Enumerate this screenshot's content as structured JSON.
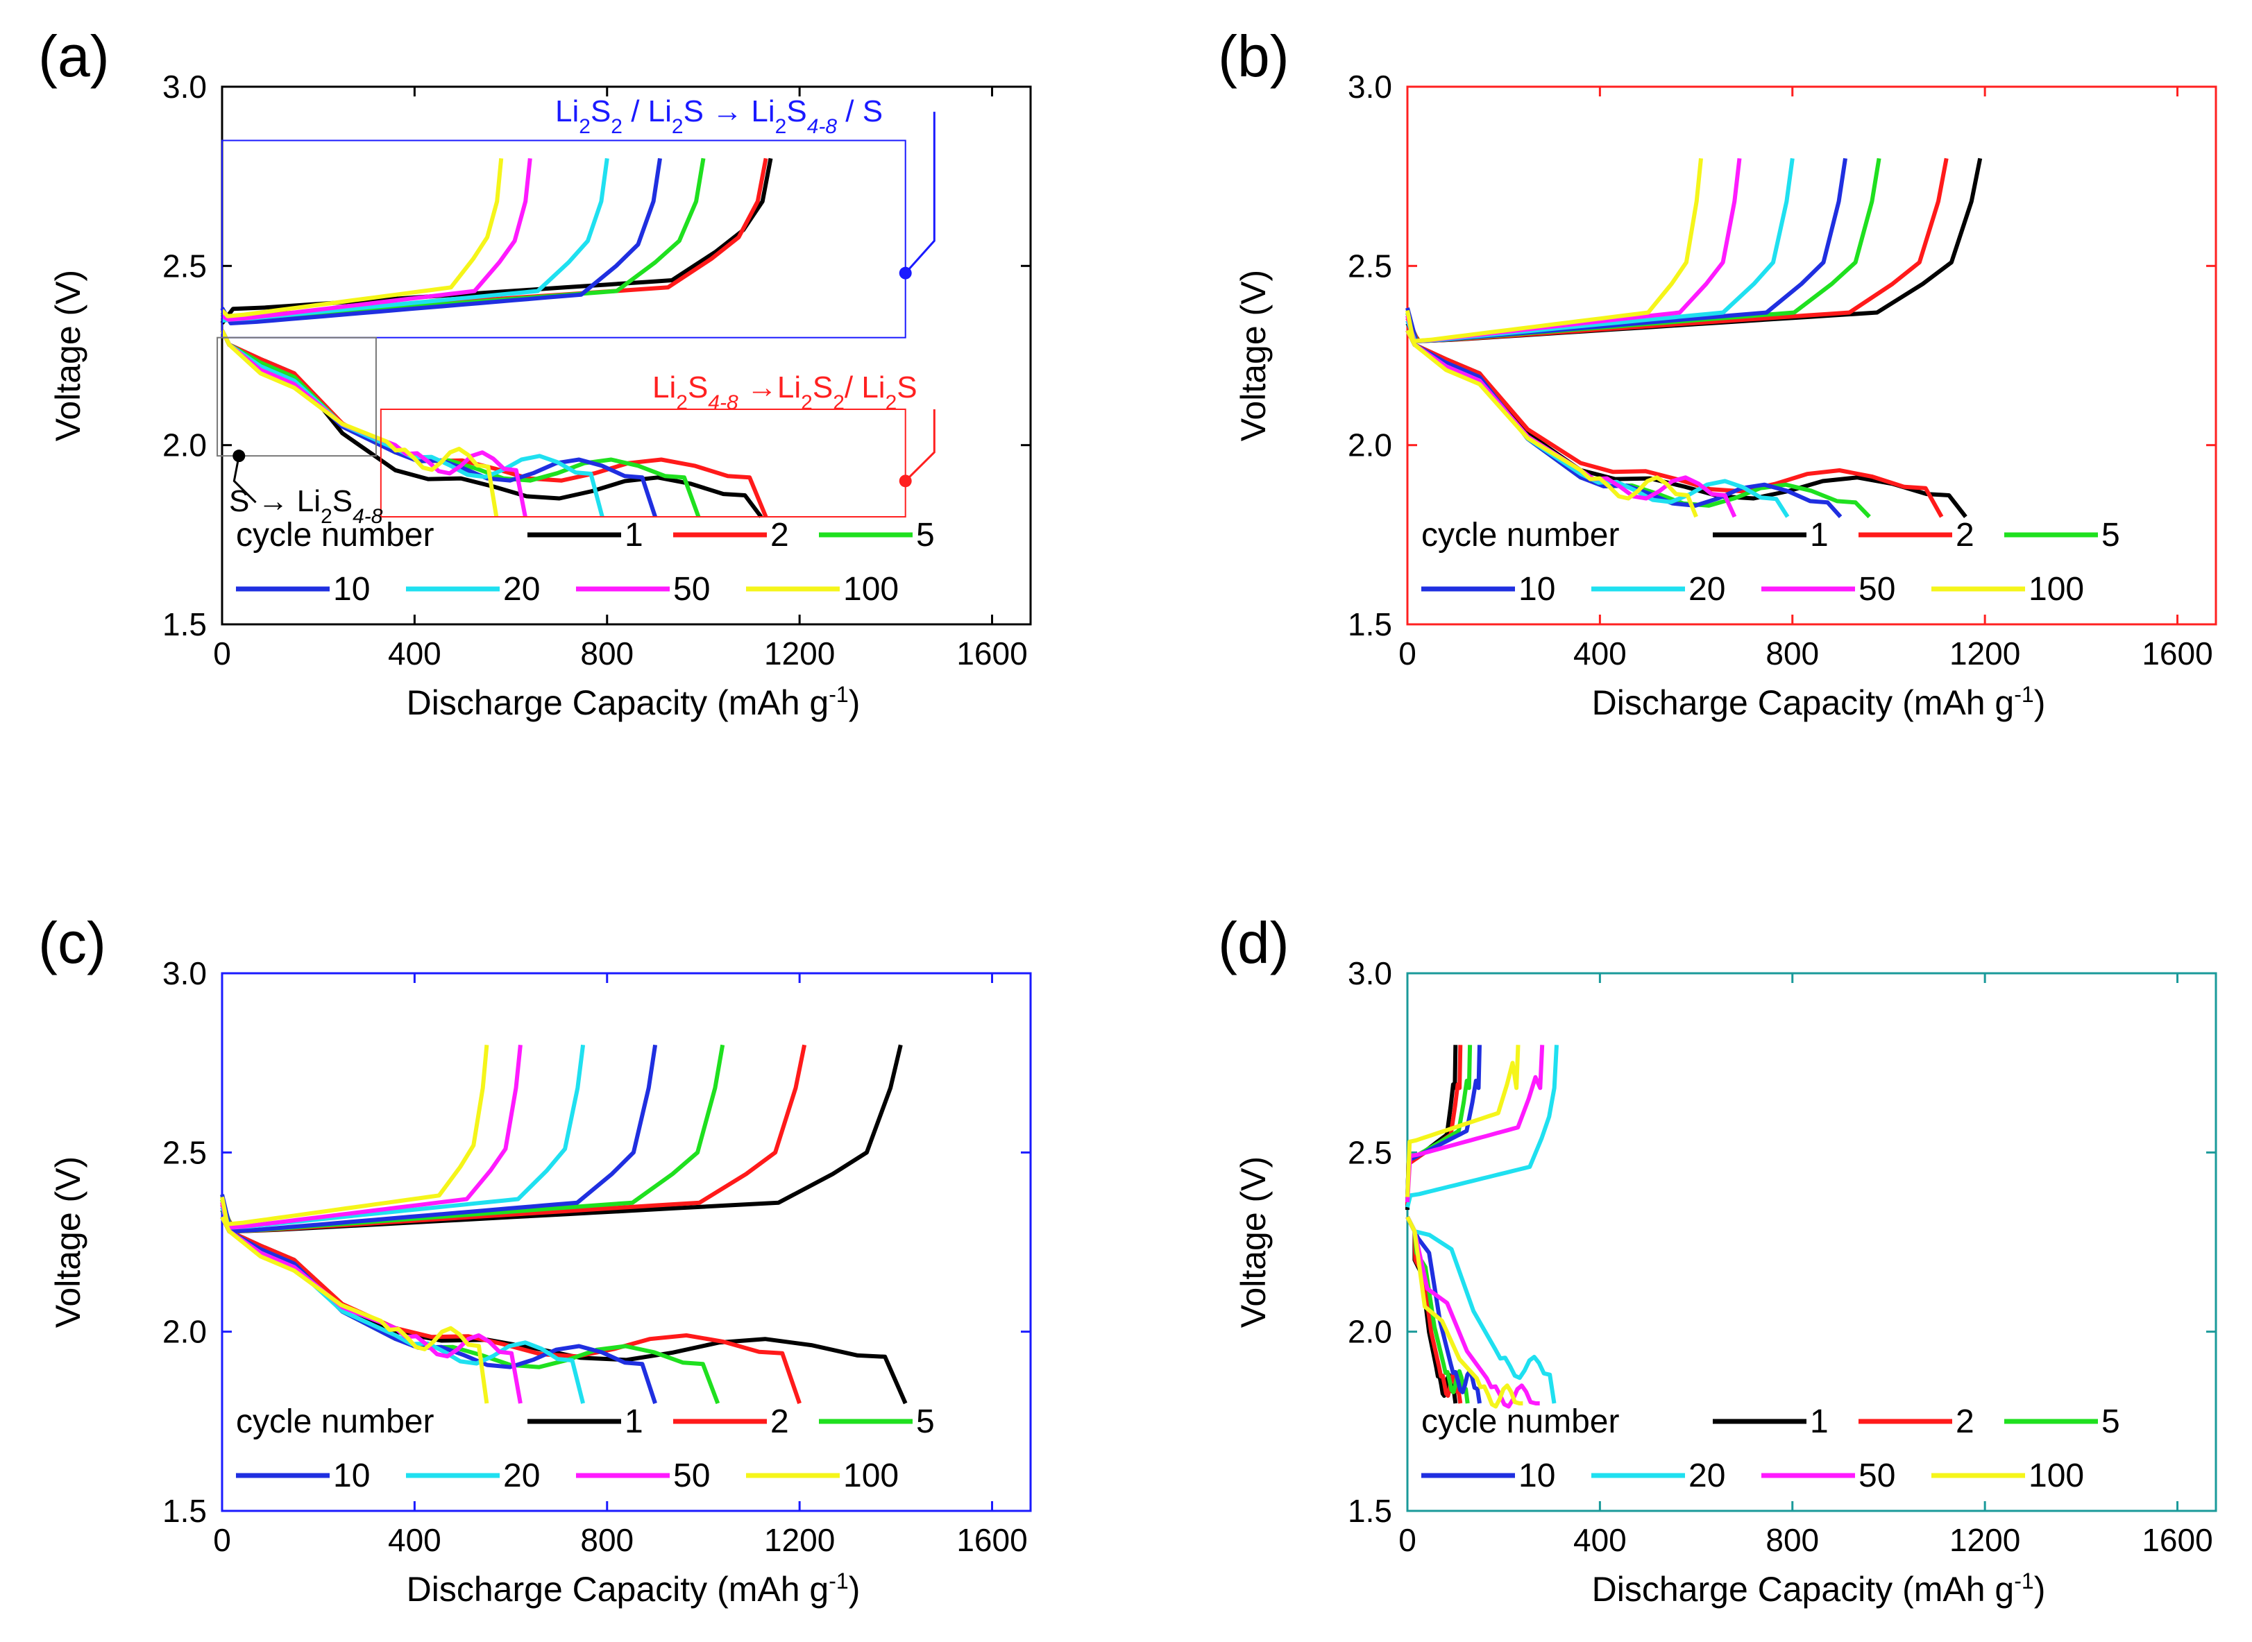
{
  "figure": {
    "charge_cutoff": 2.8,
    "discharge_cutoff": 1.8
  },
  "chart_data": [
    {
      "panel": "(a)",
      "type": "line",
      "frame_color": "#000000",
      "xlabel_main": "Discharge Capacity (mAh g",
      "xlabel_sup": "-1",
      "xlabel_close": ")",
      "ylabel": "Voltage (V)",
      "xlim": [
        0,
        1680
      ],
      "ylim": [
        1.5,
        3.0
      ],
      "xticks": [
        "0",
        "400",
        "800",
        "1200",
        "1600"
      ],
      "yticks": [
        "1.5",
        "2.0",
        "2.5",
        "3.0"
      ],
      "legend": {
        "title": "cycle number",
        "labels": [
          "1",
          "2",
          "5",
          "10",
          "20",
          "50",
          "100"
        ]
      },
      "annotations": [
        {
          "main": "Li",
          "sub1": "2",
          "mid1": "S",
          "sub2": "2",
          "mid2": " / Li",
          "sub3": "2",
          "mid3": "S → Li",
          "sub4": "2",
          "mid4": "S",
          "sub5": "4-8",
          "tail": " / S",
          "color": "#1a1aff"
        },
        {
          "main": "Li",
          "sub1": "2",
          "mid1": "S",
          "sub2": "4-8",
          "mid2": " →Li",
          "sub3": "2",
          "mid3": "S",
          "sub4": "2",
          "mid4": "/ Li",
          "sub5": "2",
          "tail": "S",
          "color": "#ff2020"
        },
        {
          "main": "S",
          "arrow": " → Li",
          "sub1": "2",
          "mid1": "S",
          "sub2": "4-8",
          "color": "#000000"
        }
      ],
      "series": [
        {
          "name": "1",
          "color": "#000000",
          "charge_cap": 1140,
          "charge_plateau": 2.36,
          "discharge_cap": 1120,
          "dis_upper": 2.22,
          "dis_lower": 1.88
        },
        {
          "name": "2",
          "color": "#ff1a1a",
          "charge_cap": 1130,
          "charge_plateau": 2.34,
          "discharge_cap": 1130,
          "dis_upper": 2.22,
          "dis_lower": 1.93
        },
        {
          "name": "5",
          "color": "#1fe01f",
          "charge_cap": 1000,
          "charge_plateau": 2.33,
          "discharge_cap": 990,
          "dis_upper": 2.21,
          "dis_lower": 1.93
        },
        {
          "name": "10",
          "color": "#1f2fe0",
          "charge_cap": 910,
          "charge_plateau": 2.32,
          "discharge_cap": 900,
          "dis_upper": 2.2,
          "dis_lower": 1.93
        },
        {
          "name": "20",
          "color": "#1fe0f0",
          "charge_cap": 800,
          "charge_plateau": 2.33,
          "discharge_cap": 790,
          "dis_upper": 2.2,
          "dis_lower": 1.94
        },
        {
          "name": "50",
          "color": "#ff1aff",
          "charge_cap": 640,
          "charge_plateau": 2.33,
          "discharge_cap": 630,
          "dis_upper": 2.19,
          "dis_lower": 1.95
        },
        {
          "name": "100",
          "color": "#f5f51a",
          "charge_cap": 580,
          "charge_plateau": 2.34,
          "discharge_cap": 570,
          "dis_upper": 2.18,
          "dis_lower": 1.96
        }
      ]
    },
    {
      "panel": "(b)",
      "type": "line",
      "frame_color": "#ff2020",
      "xlabel_main": "Discharge Capacity (mAh g",
      "xlabel_sup": "-1",
      "xlabel_close": ")",
      "ylabel": "Voltage (V)",
      "xlim": [
        0,
        1680
      ],
      "ylim": [
        1.5,
        3.0
      ],
      "xticks": [
        "0",
        "400",
        "800",
        "1200",
        "1600"
      ],
      "yticks": [
        "1.5",
        "2.0",
        "2.5",
        "3.0"
      ],
      "legend": {
        "title": "cycle number",
        "labels": [
          "1",
          "2",
          "5",
          "10",
          "20",
          "50",
          "100"
        ]
      },
      "series": [
        {
          "name": "1",
          "color": "#000000",
          "charge_cap": 1190,
          "charge_plateau": 2.27,
          "discharge_cap": 1160,
          "dis_upper": 2.22,
          "dis_lower": 1.88
        },
        {
          "name": "2",
          "color": "#ff1a1a",
          "charge_cap": 1120,
          "charge_plateau": 2.27,
          "discharge_cap": 1110,
          "dis_upper": 2.22,
          "dis_lower": 1.9
        },
        {
          "name": "5",
          "color": "#1fe01f",
          "charge_cap": 980,
          "charge_plateau": 2.27,
          "discharge_cap": 960,
          "dis_upper": 2.21,
          "dis_lower": 1.86
        },
        {
          "name": "10",
          "color": "#1f2fe0",
          "charge_cap": 910,
          "charge_plateau": 2.27,
          "discharge_cap": 900,
          "dis_upper": 2.21,
          "dis_lower": 1.86
        },
        {
          "name": "20",
          "color": "#1fe0f0",
          "charge_cap": 800,
          "charge_plateau": 2.27,
          "discharge_cap": 790,
          "dis_upper": 2.2,
          "dis_lower": 1.87
        },
        {
          "name": "50",
          "color": "#ff1aff",
          "charge_cap": 690,
          "charge_plateau": 2.27,
          "discharge_cap": 680,
          "dis_upper": 2.2,
          "dis_lower": 1.88
        },
        {
          "name": "100",
          "color": "#f5f51a",
          "charge_cap": 610,
          "charge_plateau": 2.27,
          "discharge_cap": 600,
          "dis_upper": 2.19,
          "dis_lower": 1.88
        }
      ]
    },
    {
      "panel": "(c)",
      "type": "line",
      "frame_color": "#1a1aff",
      "xlabel_main": "Discharge Capacity (mAh g",
      "xlabel_sup": "-1",
      "xlabel_close": ")",
      "ylabel": "Voltage (V)",
      "xlim": [
        0,
        1680
      ],
      "ylim": [
        1.5,
        3.0
      ],
      "xticks": [
        "0",
        "400",
        "800",
        "1200",
        "1600"
      ],
      "yticks": [
        "1.5",
        "2.0",
        "2.5",
        "3.0"
      ],
      "legend": {
        "title": "cycle number",
        "labels": [
          "1",
          "2",
          "5",
          "10",
          "20",
          "50",
          "100"
        ]
      },
      "series": [
        {
          "name": "1",
          "color": "#000000",
          "charge_cap": 1410,
          "charge_plateau": 2.26,
          "discharge_cap": 1420,
          "dis_upper": 2.22,
          "dis_lower": 1.95
        },
        {
          "name": "2",
          "color": "#ff1a1a",
          "charge_cap": 1210,
          "charge_plateau": 2.26,
          "discharge_cap": 1200,
          "dis_upper": 2.22,
          "dis_lower": 1.96
        },
        {
          "name": "5",
          "color": "#1fe01f",
          "charge_cap": 1040,
          "charge_plateau": 2.26,
          "discharge_cap": 1030,
          "dis_upper": 2.21,
          "dis_lower": 1.93
        },
        {
          "name": "10",
          "color": "#1f2fe0",
          "charge_cap": 900,
          "charge_plateau": 2.26,
          "discharge_cap": 900,
          "dis_upper": 2.21,
          "dis_lower": 1.93
        },
        {
          "name": "20",
          "color": "#1fe0f0",
          "charge_cap": 750,
          "charge_plateau": 2.27,
          "discharge_cap": 750,
          "dis_upper": 2.2,
          "dis_lower": 1.94
        },
        {
          "name": "50",
          "color": "#ff1aff",
          "charge_cap": 620,
          "charge_plateau": 2.27,
          "discharge_cap": 620,
          "dis_upper": 2.2,
          "dis_lower": 1.96
        },
        {
          "name": "100",
          "color": "#f5f51a",
          "charge_cap": 550,
          "charge_plateau": 2.28,
          "discharge_cap": 550,
          "dis_upper": 2.19,
          "dis_lower": 1.98
        }
      ]
    },
    {
      "panel": "(d)",
      "type": "line",
      "frame_color": "#1a9a9a",
      "xlabel_main": "Discharge Capacity (mAh g",
      "xlabel_sup": "-1",
      "xlabel_close": ")",
      "ylabel": "Voltage (V)",
      "xlim": [
        0,
        1680
      ],
      "ylim": [
        1.5,
        3.0
      ],
      "xticks": [
        "0",
        "400",
        "800",
        "1200",
        "1600"
      ],
      "yticks": [
        "1.5",
        "2.0",
        "2.5",
        "3.0"
      ],
      "legend": {
        "title": "cycle number",
        "labels": [
          "1",
          "2",
          "5",
          "10",
          "20",
          "50",
          "100"
        ]
      },
      "series": [
        {
          "name": "1",
          "color": "#000000",
          "charge_cap": 100,
          "charge_plateau": 2.45,
          "discharge_cap": 100,
          "dis_upper": 2.18,
          "dis_lower": 1.85
        },
        {
          "name": "2",
          "color": "#ff1a1a",
          "charge_cap": 110,
          "charge_plateau": 2.45,
          "discharge_cap": 110,
          "dis_upper": 2.18,
          "dis_lower": 1.85
        },
        {
          "name": "5",
          "color": "#1fe01f",
          "charge_cap": 130,
          "charge_plateau": 2.46,
          "discharge_cap": 125,
          "dis_upper": 2.2,
          "dis_lower": 1.86
        },
        {
          "name": "10",
          "color": "#1f2fe0",
          "charge_cap": 150,
          "charge_plateau": 2.46,
          "discharge_cap": 150,
          "dis_upper": 2.24,
          "dis_lower": 1.86
        },
        {
          "name": "20",
          "color": "#1fe0f0",
          "charge_cap": 310,
          "charge_plateau": 2.36,
          "discharge_cap": 305,
          "dis_upper": 2.25,
          "dis_lower": 1.9
        },
        {
          "name": "50",
          "color": "#ff1aff",
          "charge_cap": 280,
          "charge_plateau": 2.47,
          "discharge_cap": 275,
          "dis_upper": 2.1,
          "dis_lower": 1.82
        },
        {
          "name": "100",
          "color": "#f5f51a",
          "charge_cap": 230,
          "charge_plateau": 2.51,
          "discharge_cap": 240,
          "dis_upper": 2.05,
          "dis_lower": 1.82
        }
      ]
    }
  ]
}
